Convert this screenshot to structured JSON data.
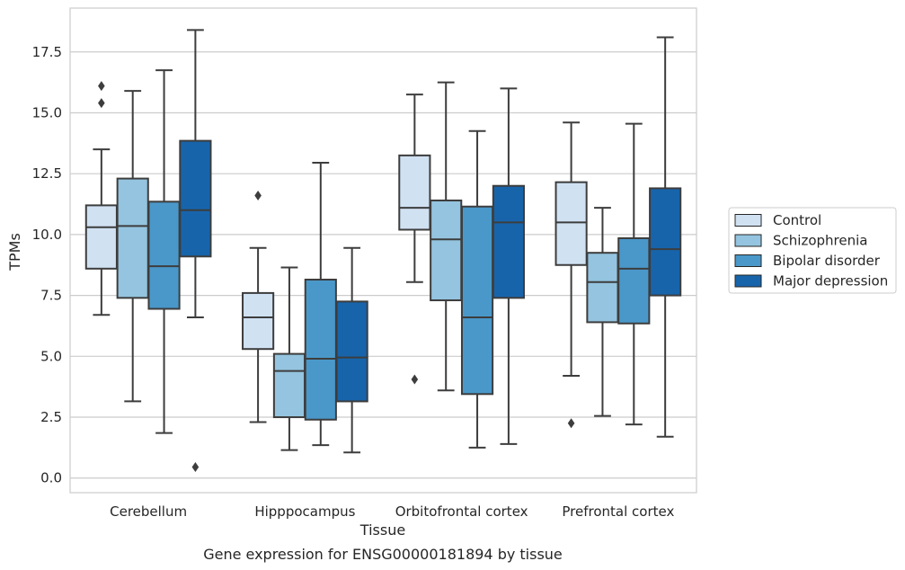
{
  "chart_data": {
    "type": "box",
    "title": "",
    "caption": "Gene expression for ENSG00000181894 by tissue",
    "xlabel": "Tissue",
    "ylabel": "TPMs",
    "ylim": [
      -0.6,
      19.3
    ],
    "yticks": [
      0.0,
      2.5,
      5.0,
      7.5,
      10.0,
      12.5,
      15.0,
      17.5
    ],
    "ytick_labels": [
      "0.0",
      "2.5",
      "5.0",
      "7.5",
      "10.0",
      "12.5",
      "15.0",
      "17.5"
    ],
    "grid": true,
    "legend_position": "right",
    "categories": [
      "Cerebellum",
      "Hipppocampus",
      "Orbitofrontal cortex",
      "Prefrontal cortex"
    ],
    "series": [
      {
        "name": "Control",
        "color": "#d0e1f2",
        "boxes": [
          {
            "whislo": 6.7,
            "q1": 8.6,
            "med": 10.3,
            "q3": 11.2,
            "whishi": 13.5,
            "fliers": [
              16.1,
              15.4
            ]
          },
          {
            "whislo": 2.3,
            "q1": 5.3,
            "med": 6.6,
            "q3": 7.6,
            "whishi": 9.45,
            "fliers": [
              11.6
            ]
          },
          {
            "whislo": 8.05,
            "q1": 10.2,
            "med": 11.1,
            "q3": 13.25,
            "whishi": 15.75,
            "fliers": [
              4.05
            ]
          },
          {
            "whislo": 4.2,
            "q1": 8.75,
            "med": 10.5,
            "q3": 12.15,
            "whishi": 14.6,
            "fliers": [
              2.25
            ]
          }
        ]
      },
      {
        "name": "Schizophrenia",
        "color": "#94c4df",
        "boxes": [
          {
            "whislo": 3.15,
            "q1": 7.4,
            "med": 10.35,
            "q3": 12.3,
            "whishi": 15.9,
            "fliers": []
          },
          {
            "whislo": 1.15,
            "q1": 2.5,
            "med": 4.4,
            "q3": 5.1,
            "whishi": 8.65,
            "fliers": []
          },
          {
            "whislo": 3.6,
            "q1": 7.3,
            "med": 9.8,
            "q3": 11.4,
            "whishi": 16.25,
            "fliers": []
          },
          {
            "whislo": 2.55,
            "q1": 6.4,
            "med": 8.05,
            "q3": 9.25,
            "whishi": 11.1,
            "fliers": []
          }
        ]
      },
      {
        "name": "Bipolar disorder",
        "color": "#4a98c9",
        "boxes": [
          {
            "whislo": 1.85,
            "q1": 6.95,
            "med": 8.7,
            "q3": 11.35,
            "whishi": 16.75,
            "fliers": []
          },
          {
            "whislo": 1.35,
            "q1": 2.4,
            "med": 4.9,
            "q3": 8.15,
            "whishi": 12.95,
            "fliers": []
          },
          {
            "whislo": 1.25,
            "q1": 3.45,
            "med": 6.6,
            "q3": 11.15,
            "whishi": 14.25,
            "fliers": []
          },
          {
            "whislo": 2.2,
            "q1": 6.35,
            "med": 8.6,
            "q3": 9.85,
            "whishi": 14.55,
            "fliers": []
          }
        ]
      },
      {
        "name": "Major depression",
        "color": "#1764ab",
        "boxes": [
          {
            "whislo": 6.6,
            "q1": 9.1,
            "med": 11.0,
            "q3": 13.85,
            "whishi": 18.4,
            "fliers": [
              0.45
            ]
          },
          {
            "whislo": 1.05,
            "q1": 3.15,
            "med": 4.95,
            "q3": 7.25,
            "whishi": 9.45,
            "fliers": []
          },
          {
            "whislo": 1.4,
            "q1": 7.4,
            "med": 10.5,
            "q3": 12.0,
            "whishi": 16.0,
            "fliers": []
          },
          {
            "whislo": 1.7,
            "q1": 7.5,
            "med": 9.4,
            "q3": 11.9,
            "whishi": 18.1,
            "fliers": []
          }
        ]
      }
    ]
  }
}
